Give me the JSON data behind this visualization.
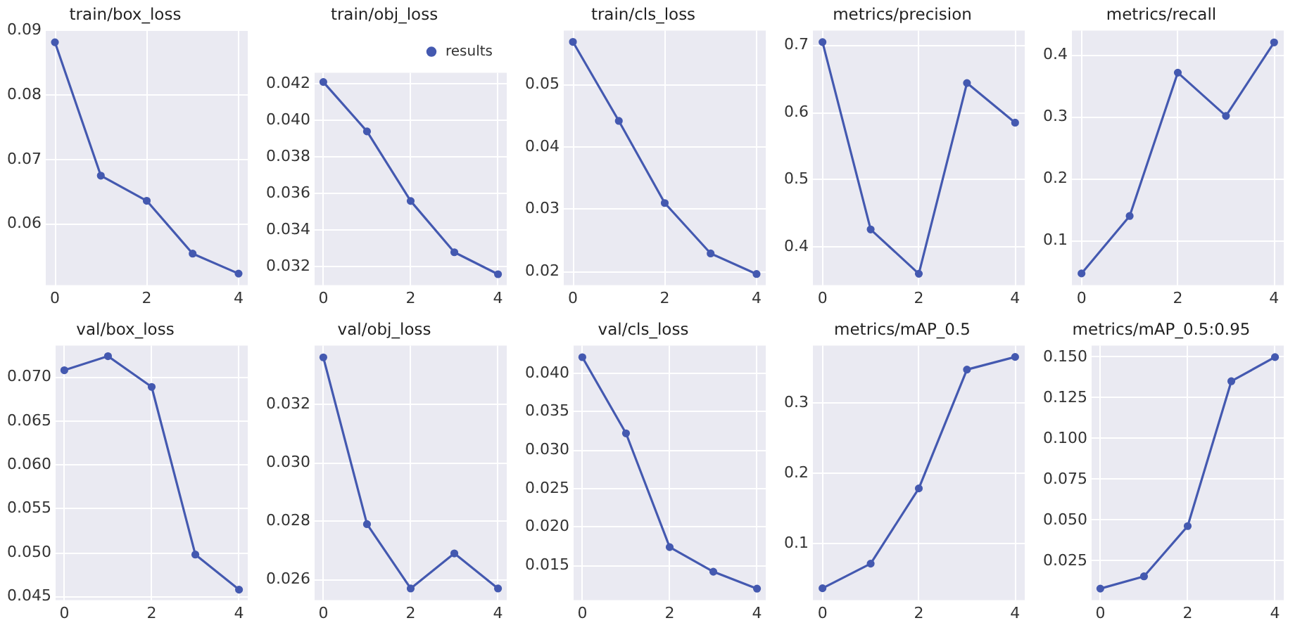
{
  "chart_data": [
    {
      "type": "line",
      "title": "train/box_loss",
      "x": [
        0,
        1,
        2,
        3,
        4
      ],
      "xlim": [
        -0.2,
        4.2
      ],
      "xticks": [
        0,
        2,
        4
      ],
      "ylim": [
        0.0505,
        0.09
      ],
      "yticks": [
        0.06,
        0.07,
        0.08,
        0.09
      ],
      "grid": true,
      "marker": "circle",
      "series": [
        {
          "color": "#4459b0",
          "values": [
            0.0882,
            0.0675,
            0.0636,
            0.0554,
            0.0523
          ]
        }
      ]
    },
    {
      "type": "line",
      "title": "train/obj_loss",
      "x": [
        0,
        1,
        2,
        3,
        4
      ],
      "xlim": [
        -0.2,
        4.2
      ],
      "xticks": [
        0,
        2,
        4
      ],
      "ylim": [
        0.031,
        0.0426
      ],
      "yticks": [
        0.032,
        0.034,
        0.036,
        0.038,
        {
          "value": 0.04,
          "label": "0.040"
        },
        0.042
      ],
      "grid": true,
      "marker": "circle",
      "legend": "top right",
      "series": [
        {
          "name": "results",
          "color": "#4459b0",
          "values": [
            0.0421,
            0.0394,
            0.0356,
            0.0328,
            0.0316
          ]
        }
      ]
    },
    {
      "type": "line",
      "title": "train/cls_loss",
      "x": [
        0,
        1,
        2,
        3,
        4
      ],
      "xlim": [
        -0.2,
        4.2
      ],
      "xticks": [
        0,
        2,
        4
      ],
      "ylim": [
        0.0178,
        0.0587
      ],
      "yticks": [
        0.02,
        0.03,
        0.04,
        0.05
      ],
      "grid": true,
      "marker": "circle",
      "series": [
        {
          "color": "#4459b0",
          "values": [
            0.0569,
            0.0442,
            0.031,
            0.0229,
            0.0196
          ]
        }
      ]
    },
    {
      "type": "line",
      "title": "metrics/precision",
      "x": [
        0,
        1,
        2,
        3,
        4
      ],
      "xlim": [
        -0.2,
        4.2
      ],
      "xticks": [
        0,
        2,
        4
      ],
      "ylim": [
        0.343,
        0.722
      ],
      "yticks": [
        0.4,
        0.5,
        0.6,
        0.7
      ],
      "grid": true,
      "marker": "circle",
      "series": [
        {
          "color": "#4459b0",
          "values": [
            0.705,
            0.426,
            0.36,
            0.644,
            0.585
          ]
        }
      ]
    },
    {
      "type": "line",
      "title": "metrics/recall",
      "x": [
        0,
        1,
        2,
        3,
        4
      ],
      "xlim": [
        -0.2,
        4.2
      ],
      "xticks": [
        0,
        2,
        4
      ],
      "ylim": [
        0.028,
        0.44
      ],
      "yticks": [
        0.1,
        0.2,
        0.3,
        0.4
      ],
      "grid": true,
      "marker": "circle",
      "series": [
        {
          "color": "#4459b0",
          "values": [
            0.047,
            0.14,
            0.372,
            0.302,
            0.421
          ]
        }
      ]
    },
    {
      "type": "line",
      "title": "val/box_loss",
      "x": [
        0,
        1,
        2,
        3,
        4
      ],
      "xlim": [
        -0.2,
        4.2
      ],
      "xticks": [
        0,
        2,
        4
      ],
      "ylim": [
        0.0446,
        0.0736
      ],
      "yticks": [
        0.045,
        {
          "value": 0.05,
          "label": "0.050"
        },
        0.055,
        {
          "value": 0.06,
          "label": "0.060"
        },
        0.065,
        {
          "value": 0.07,
          "label": "0.070"
        }
      ],
      "grid": true,
      "marker": "circle",
      "series": [
        {
          "color": "#4459b0",
          "values": [
            0.0708,
            0.0724,
            0.0689,
            0.0498,
            0.0458
          ]
        }
      ]
    },
    {
      "type": "line",
      "title": "val/obj_loss",
      "x": [
        0,
        1,
        2,
        3,
        4
      ],
      "xlim": [
        -0.2,
        4.2
      ],
      "xticks": [
        0,
        2,
        4
      ],
      "ylim": [
        0.0253,
        0.034
      ],
      "yticks": [
        0.026,
        0.028,
        {
          "value": 0.03,
          "label": "0.030"
        },
        0.032
      ],
      "grid": true,
      "marker": "circle",
      "series": [
        {
          "color": "#4459b0",
          "values": [
            0.0336,
            0.0279,
            0.0257,
            0.0269,
            0.0257
          ]
        }
      ]
    },
    {
      "type": "line",
      "title": "val/cls_loss",
      "x": [
        0,
        1,
        2,
        3,
        4
      ],
      "xlim": [
        -0.2,
        4.2
      ],
      "xticks": [
        0,
        2,
        4
      ],
      "ylim": [
        0.0105,
        0.0436
      ],
      "yticks": [
        0.015,
        {
          "value": 0.02,
          "label": "0.020"
        },
        0.025,
        {
          "value": 0.03,
          "label": "0.030"
        },
        0.035,
        {
          "value": 0.04,
          "label": "0.040"
        }
      ],
      "grid": true,
      "marker": "circle",
      "series": [
        {
          "color": "#4459b0",
          "values": [
            0.0421,
            0.0322,
            0.0174,
            0.0142,
            0.012
          ]
        }
      ]
    },
    {
      "type": "line",
      "title": "metrics/mAP_0.5",
      "x": [
        0,
        1,
        2,
        3,
        4
      ],
      "xlim": [
        -0.2,
        4.2
      ],
      "xticks": [
        0,
        2,
        4
      ],
      "ylim": [
        0.02,
        0.382
      ],
      "yticks": [
        0.1,
        0.2,
        0.3
      ],
      "grid": true,
      "marker": "circle",
      "series": [
        {
          "color": "#4459b0",
          "values": [
            0.037,
            0.072,
            0.179,
            0.348,
            0.366
          ]
        }
      ]
    },
    {
      "type": "line",
      "title": "metrics/mAP_0.5:0.95",
      "x": [
        0,
        1,
        2,
        3,
        4
      ],
      "xlim": [
        -0.2,
        4.2
      ],
      "xticks": [
        0,
        2,
        4
      ],
      "ylim": [
        0.001,
        0.157
      ],
      "yticks": [
        0.025,
        {
          "value": 0.05,
          "label": "0.050"
        },
        0.075,
        {
          "value": 0.1,
          "label": "0.100"
        },
        0.125,
        {
          "value": 0.15,
          "label": "0.150"
        }
      ],
      "grid": true,
      "marker": "circle",
      "series": [
        {
          "color": "#4459b0",
          "values": [
            0.0081,
            0.0156,
            0.0464,
            0.1352,
            0.15
          ]
        }
      ]
    }
  ]
}
